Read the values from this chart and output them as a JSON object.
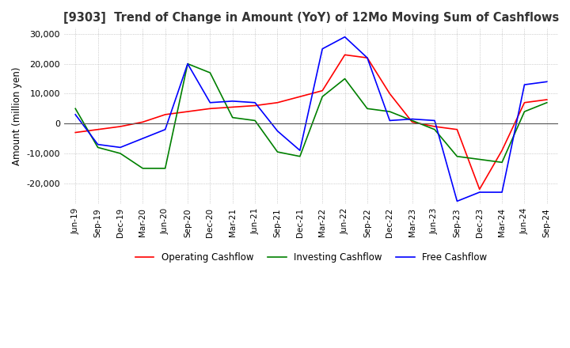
{
  "title": "[9303]  Trend of Change in Amount (YoY) of 12Mo Moving Sum of Cashflows",
  "ylabel": "Amount (million yen)",
  "ylim": [
    -27000,
    32000
  ],
  "yticks": [
    -20000,
    -10000,
    0,
    10000,
    20000,
    30000
  ],
  "x_labels": [
    "Jun-19",
    "Sep-19",
    "Dec-19",
    "Mar-20",
    "Jun-20",
    "Sep-20",
    "Dec-20",
    "Mar-21",
    "Jun-21",
    "Sep-21",
    "Dec-21",
    "Mar-22",
    "Jun-22",
    "Sep-22",
    "Dec-22",
    "Mar-23",
    "Jun-23",
    "Sep-23",
    "Dec-23",
    "Mar-24",
    "Jun-24",
    "Sep-24"
  ],
  "operating": [
    -3000,
    -2000,
    -1000,
    500,
    3000,
    4000,
    5000,
    5500,
    6000,
    7000,
    9000,
    11000,
    23000,
    22000,
    10000,
    500,
    -1000,
    -2000,
    -22000,
    -9000,
    7000,
    8000
  ],
  "investing": [
    5000,
    -8000,
    -10000,
    -15000,
    -15000,
    20000,
    17000,
    2000,
    1000,
    -9500,
    -11000,
    9000,
    15000,
    5000,
    4000,
    1000,
    -2000,
    -11000,
    -12000,
    -13000,
    4000,
    7000
  ],
  "free": [
    3000,
    -7000,
    -8000,
    -5000,
    -2000,
    20000,
    7000,
    7500,
    7000,
    -2500,
    -9000,
    25000,
    29000,
    22000,
    1000,
    1500,
    1000,
    -26000,
    -23000,
    -23000,
    13000,
    14000
  ],
  "colors": {
    "operating": "#ff0000",
    "investing": "#008000",
    "free": "#0000ff"
  },
  "legend_labels": [
    "Operating Cashflow",
    "Investing Cashflow",
    "Free Cashflow"
  ],
  "background_color": "#ffffff",
  "grid_color": "#aaaaaa"
}
